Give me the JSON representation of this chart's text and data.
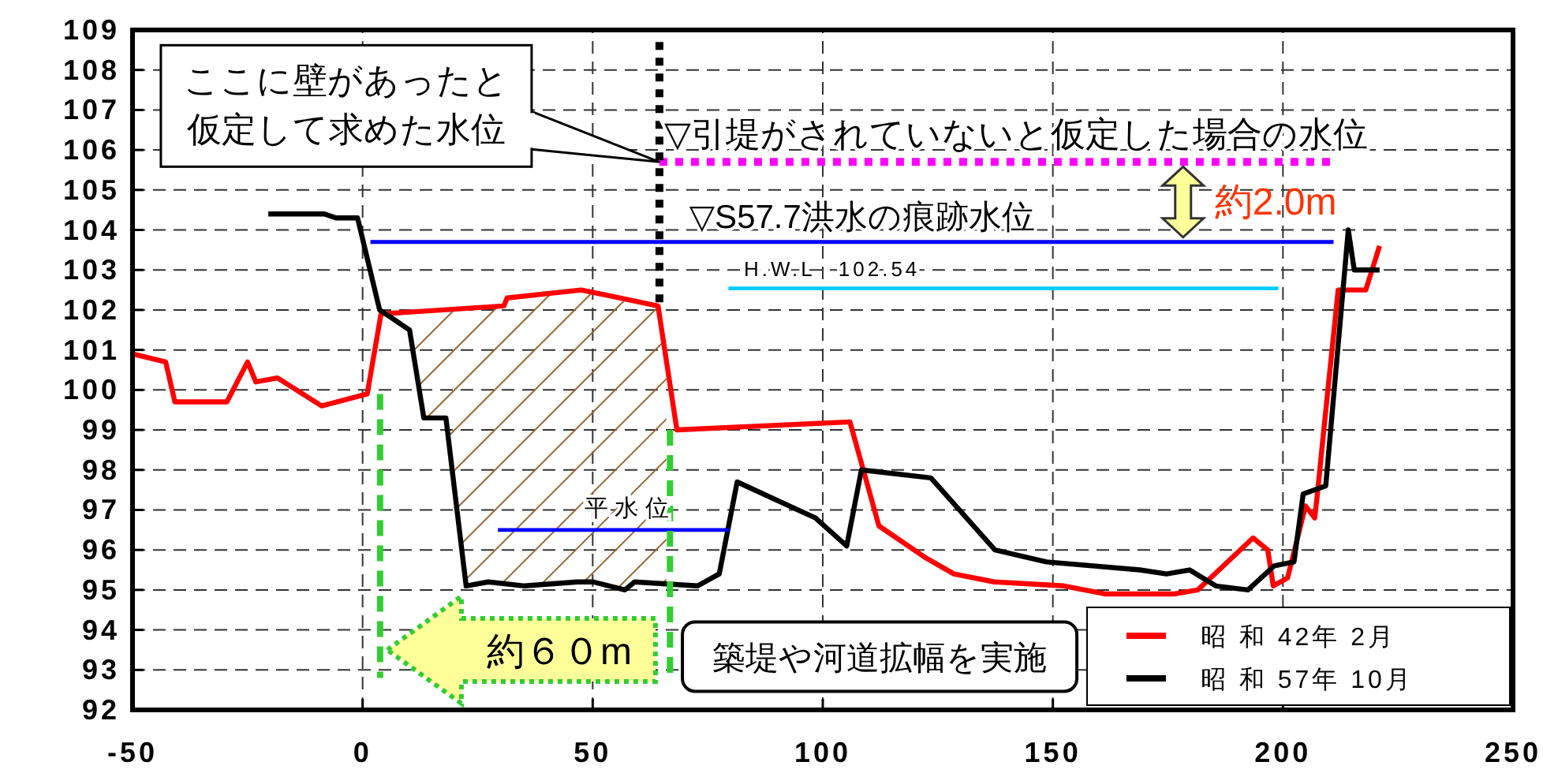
{
  "chart_data": {
    "type": "line",
    "xlim": [
      -50,
      250
    ],
    "xticks": [
      -50,
      0,
      50,
      100,
      150,
      200,
      250
    ],
    "ylim": [
      92,
      109
    ],
    "yticks": [
      92,
      93,
      94,
      95,
      96,
      97,
      98,
      99,
      100,
      101,
      102,
      103,
      104,
      105,
      106,
      107,
      108,
      109
    ],
    "grid": true,
    "legend": "bottom right",
    "marker": "none",
    "line_style": "solid",
    "series": [
      {
        "name": "昭 和 42年 2月",
        "color": "#ff0000",
        "x": [
          -50,
          -42.8,
          -40.8,
          -29.5,
          -25,
          -23.2,
          -18.5,
          -8.9,
          1,
          4,
          30.7,
          31.4,
          47.5,
          64.2,
          68.3,
          105.9,
          112.2,
          122.4,
          128.5,
          137.3,
          152.4,
          161.3,
          171.5,
          176.5,
          181.5,
          193.5,
          196.7,
          197.9,
          201,
          204.9,
          206.9,
          207.4,
          208.7,
          212,
          218,
          221
        ],
        "values": [
          100.9,
          100.7,
          99.7,
          99.7,
          100.7,
          100.2,
          100.3,
          99.6,
          99.9,
          101.9,
          102.1,
          102.3,
          102.5,
          102.1,
          99.0,
          99.2,
          96.6,
          95.8,
          95.4,
          95.2,
          95.1,
          94.9,
          94.9,
          94.9,
          95.0,
          96.3,
          96.0,
          95.1,
          95.3,
          97.1,
          96.8,
          97.3,
          98.8,
          102.5,
          102.5,
          103.6
        ]
      },
      {
        "name": "昭 和 57年 10月",
        "color": "#000000",
        "x": [
          -20.5,
          -8.3,
          -5.8,
          -1.1,
          3.7,
          10.2,
          13.3,
          18.1,
          22.5,
          27.3,
          35.2,
          46.7,
          50.1,
          57,
          59.1,
          72.8,
          77.5,
          81.4,
          98.4,
          105.2,
          108.4,
          123.5,
          137.4,
          148.6,
          168.9,
          174.7,
          179.7,
          185.4,
          192.4,
          198.1,
          202.4,
          204.4,
          209.3,
          214.2,
          215.5,
          221
        ],
        "values": [
          104.4,
          104.4,
          104.3,
          104.3,
          102.0,
          101.5,
          99.3,
          99.3,
          95.1,
          95.2,
          95.1,
          95.2,
          95.2,
          95.0,
          95.2,
          95.1,
          95.4,
          97.7,
          96.8,
          96.1,
          98.0,
          97.8,
          96.0,
          95.7,
          95.5,
          95.4,
          95.5,
          95.1,
          95.0,
          95.6,
          95.7,
          97.4,
          97.6,
          104.0,
          103.0,
          103.0
        ]
      },
      {
        "color": "#ff00ff",
        "line_style": "dotted",
        "x": [
          64.5,
          210.5
        ],
        "values": [
          105.7,
          105.7
        ]
      },
      {
        "color": "#0000ff",
        "x": [
          1.7,
          211
        ],
        "values": [
          103.7,
          103.7
        ]
      },
      {
        "color": "#00ccff",
        "x": [
          79.5,
          199
        ],
        "values": [
          102.54,
          102.54
        ]
      },
      {
        "color": "#0000ff",
        "x": [
          29.4,
          79.6
        ],
        "values": [
          96.5,
          96.5
        ]
      },
      {
        "color": "#000000",
        "line_style": "dotted",
        "x": [
          64.5,
          64.5
        ],
        "values": [
          108.7,
          102.1
        ]
      },
      {
        "color": "#33cc33",
        "line_style": "dashed",
        "x": [
          3.8,
          3.8
        ],
        "values": [
          99.9,
          92.8
        ]
      },
      {
        "color": "#33cc33",
        "line_style": "dashed",
        "x": [
          66.8,
          66.8
        ],
        "values": [
          99.0,
          92.8
        ]
      }
    ],
    "bands": [
      {
        "axis": "x",
        "from": 11,
        "to": 66,
        "color": "#996633"
      }
    ],
    "annotations": [
      {
        "text": "ここに壁があったと",
        "x": 64.5,
        "y": 105.7
      },
      "仮定して求めた水位",
      {
        "text": "▽引堤がされていないと仮定した場合の水位",
        "x": 64.5,
        "y": 105.7
      },
      {
        "text": "▽S57.7洪水の痕跡水位",
        "x": 71,
        "y": 103.7
      },
      {
        "text": "H.W.L　102.54",
        "x": 102,
        "y": 102.54
      },
      {
        "text": "平 水 位",
        "x": 57.4,
        "y": 96.5
      },
      "約2.0m",
      "約６０m",
      "築堤や河道拡幅を実施"
    ]
  }
}
